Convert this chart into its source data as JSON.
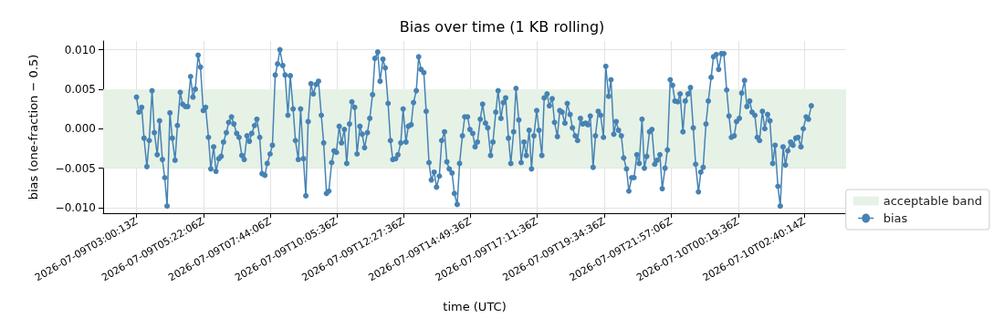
{
  "chart_data": {
    "type": "line",
    "title": "Bias over time (1 KB rolling)",
    "xlabel": "time (UTC)",
    "ylabel": "bias (one-fraction − 0.5)",
    "xlim": [
      "2026-07-09T01:49",
      "2026-07-10T04:09"
    ],
    "xticks": [
      {
        "value": "2026-07-09T03:00:13",
        "label": "2026-07-09T03:00:13Z"
      },
      {
        "value": "2026-07-09T05:22:06",
        "label": "2026-07-09T05:22:06Z"
      },
      {
        "value": "2026-07-09T07:44:06",
        "label": "2026-07-09T07:44:06Z"
      },
      {
        "value": "2026-07-09T10:05:36",
        "label": "2026-07-09T10:05:36Z"
      },
      {
        "value": "2026-07-09T12:27:36",
        "label": "2026-07-09T12:27:36Z"
      },
      {
        "value": "2026-07-09T14:49:36",
        "label": "2026-07-09T14:49:36Z"
      },
      {
        "value": "2026-07-09T17:11:36",
        "label": "2026-07-09T17:11:36Z"
      },
      {
        "value": "2026-07-09T19:34:36",
        "label": "2026-07-09T19:34:36Z"
      },
      {
        "value": "2026-07-09T21:57:06",
        "label": "2026-07-09T21:57:06Z"
      },
      {
        "value": "2026-07-10T00:19:36",
        "label": "2026-07-10T00:19:36Z"
      },
      {
        "value": "2026-07-10T02:40:14",
        "label": "2026-07-10T02:40:14Z"
      }
    ],
    "ylim": [
      -0.0107,
      0.0111
    ],
    "yticks": [
      {
        "value": -0.01,
        "label": "−0.010"
      },
      {
        "value": -0.005,
        "label": "−0.005"
      },
      {
        "value": 0,
        "label": "0.000"
      },
      {
        "value": 0.005,
        "label": "0.005"
      },
      {
        "value": 0.01,
        "label": "0.010"
      }
    ],
    "grid": true,
    "legend": "bottom right",
    "marker": "circle",
    "line_style": "solid",
    "bands": [
      {
        "axis": "y",
        "from": -0.005,
        "to": 0.005,
        "label": "acceptable band",
        "color": "#e6f2e6"
      }
    ],
    "series": [
      {
        "name": "bias",
        "color": "#4682b4",
        "x": [
          "2026-07-09T03:00",
          "2026-07-09T03:05",
          "2026-07-09T03:11",
          "2026-07-09T03:16",
          "2026-07-09T03:22",
          "2026-07-09T03:27",
          "2026-07-09T03:33",
          "2026-07-09T03:38",
          "2026-07-09T03:44",
          "2026-07-09T03:49",
          "2026-07-09T03:55",
          "2026-07-09T04:00",
          "2026-07-09T04:05",
          "2026-07-09T04:11",
          "2026-07-09T04:16",
          "2026-07-09T04:22",
          "2026-07-09T04:27",
          "2026-07-09T04:33",
          "2026-07-09T04:38",
          "2026-07-09T04:44",
          "2026-07-09T04:49",
          "2026-07-09T04:55",
          "2026-07-09T05:00",
          "2026-07-09T05:05",
          "2026-07-09T05:11",
          "2026-07-09T05:16",
          "2026-07-09T05:22",
          "2026-07-09T05:27",
          "2026-07-09T05:33",
          "2026-07-09T05:38",
          "2026-07-09T05:44",
          "2026-07-09T05:49",
          "2026-07-09T05:55",
          "2026-07-09T06:00",
          "2026-07-09T06:05",
          "2026-07-09T06:11",
          "2026-07-09T06:16",
          "2026-07-09T06:22",
          "2026-07-09T06:27",
          "2026-07-09T06:33",
          "2026-07-09T06:38",
          "2026-07-09T06:44",
          "2026-07-09T06:49",
          "2026-07-09T06:55",
          "2026-07-09T07:00",
          "2026-07-09T07:05",
          "2026-07-09T07:11",
          "2026-07-09T07:16",
          "2026-07-09T07:22",
          "2026-07-09T07:27",
          "2026-07-09T07:33",
          "2026-07-09T07:38",
          "2026-07-09T07:44",
          "2026-07-09T07:49",
          "2026-07-09T07:55",
          "2026-07-09T08:00",
          "2026-07-09T08:05",
          "2026-07-09T08:11",
          "2026-07-09T08:16",
          "2026-07-09T08:22",
          "2026-07-09T08:27",
          "2026-07-09T08:33",
          "2026-07-09T08:38",
          "2026-07-09T08:44",
          "2026-07-09T08:49",
          "2026-07-09T08:55",
          "2026-07-09T09:00",
          "2026-07-09T09:05",
          "2026-07-09T09:11",
          "2026-07-09T09:16",
          "2026-07-09T09:22",
          "2026-07-09T09:27",
          "2026-07-09T09:33",
          "2026-07-09T09:38",
          "2026-07-09T09:44",
          "2026-07-09T09:49",
          "2026-07-09T09:55",
          "2026-07-09T10:00",
          "2026-07-09T10:05",
          "2026-07-09T10:11",
          "2026-07-09T10:16",
          "2026-07-09T10:22",
          "2026-07-09T10:27",
          "2026-07-09T10:33",
          "2026-07-09T10:38",
          "2026-07-09T10:44",
          "2026-07-09T10:49",
          "2026-07-09T10:55",
          "2026-07-09T11:00",
          "2026-07-09T11:05",
          "2026-07-09T11:11",
          "2026-07-09T11:16",
          "2026-07-09T11:22",
          "2026-07-09T11:27",
          "2026-07-09T11:33",
          "2026-07-09T11:38",
          "2026-07-09T11:44",
          "2026-07-09T11:49",
          "2026-07-09T11:55",
          "2026-07-09T12:00",
          "2026-07-09T12:05",
          "2026-07-09T12:11",
          "2026-07-09T12:16",
          "2026-07-09T12:22",
          "2026-07-09T12:27",
          "2026-07-09T12:33",
          "2026-07-09T12:38",
          "2026-07-09T12:44",
          "2026-07-09T12:49",
          "2026-07-09T12:55",
          "2026-07-09T13:00",
          "2026-07-09T13:05",
          "2026-07-09T13:11",
          "2026-07-09T13:16",
          "2026-07-09T13:22",
          "2026-07-09T13:27",
          "2026-07-09T13:33",
          "2026-07-09T13:38",
          "2026-07-09T13:44",
          "2026-07-09T13:49",
          "2026-07-09T13:55",
          "2026-07-09T14:00",
          "2026-07-09T14:05",
          "2026-07-09T14:11",
          "2026-07-09T14:16",
          "2026-07-09T14:22",
          "2026-07-09T14:27",
          "2026-07-09T14:33",
          "2026-07-09T14:38",
          "2026-07-09T14:44",
          "2026-07-09T14:49",
          "2026-07-09T14:55",
          "2026-07-09T15:00",
          "2026-07-09T15:05",
          "2026-07-09T15:11",
          "2026-07-09T15:16",
          "2026-07-09T15:22",
          "2026-07-09T15:27",
          "2026-07-09T15:33",
          "2026-07-09T15:38",
          "2026-07-09T15:44",
          "2026-07-09T15:49",
          "2026-07-09T15:55",
          "2026-07-09T16:00",
          "2026-07-09T16:05",
          "2026-07-09T16:11",
          "2026-07-09T16:16",
          "2026-07-09T16:22",
          "2026-07-09T16:27",
          "2026-07-09T16:33",
          "2026-07-09T16:38",
          "2026-07-09T16:44",
          "2026-07-09T16:49",
          "2026-07-09T16:55",
          "2026-07-09T17:00",
          "2026-07-09T17:05",
          "2026-07-09T17:11",
          "2026-07-09T17:16",
          "2026-07-09T17:22",
          "2026-07-09T17:27",
          "2026-07-09T17:33",
          "2026-07-09T17:38",
          "2026-07-09T17:44",
          "2026-07-09T17:49",
          "2026-07-09T17:55",
          "2026-07-09T18:00",
          "2026-07-09T18:05",
          "2026-07-09T18:11",
          "2026-07-09T18:16",
          "2026-07-09T18:22",
          "2026-07-09T18:27",
          "2026-07-09T18:33",
          "2026-07-09T18:38",
          "2026-07-09T18:44",
          "2026-07-09T18:49",
          "2026-07-09T18:55",
          "2026-07-09T19:00",
          "2026-07-09T19:05",
          "2026-07-09T19:11",
          "2026-07-09T19:16",
          "2026-07-09T19:22",
          "2026-07-09T19:27",
          "2026-07-09T19:33",
          "2026-07-09T19:38",
          "2026-07-09T19:44",
          "2026-07-09T19:49",
          "2026-07-09T19:55",
          "2026-07-09T20:00",
          "2026-07-09T20:05",
          "2026-07-09T20:11",
          "2026-07-09T20:16",
          "2026-07-09T20:22",
          "2026-07-09T20:27",
          "2026-07-09T20:33",
          "2026-07-09T20:38",
          "2026-07-09T20:44",
          "2026-07-09T20:49",
          "2026-07-09T20:55",
          "2026-07-09T21:00",
          "2026-07-09T21:05",
          "2026-07-09T21:11",
          "2026-07-09T21:16",
          "2026-07-09T21:22",
          "2026-07-09T21:27",
          "2026-07-09T21:33",
          "2026-07-09T21:38",
          "2026-07-09T21:44",
          "2026-07-09T21:49",
          "2026-07-09T21:55",
          "2026-07-09T22:00",
          "2026-07-09T22:05",
          "2026-07-09T22:11",
          "2026-07-09T22:16",
          "2026-07-09T22:22",
          "2026-07-09T22:27",
          "2026-07-09T22:33",
          "2026-07-09T22:38",
          "2026-07-09T22:44",
          "2026-07-09T22:49",
          "2026-07-09T22:55",
          "2026-07-09T23:00",
          "2026-07-09T23:05",
          "2026-07-09T23:11",
          "2026-07-09T23:16",
          "2026-07-09T23:22",
          "2026-07-09T23:27",
          "2026-07-09T23:33",
          "2026-07-09T23:38",
          "2026-07-09T23:44",
          "2026-07-09T23:49",
          "2026-07-09T23:55",
          "2026-07-10T00:00",
          "2026-07-10T00:05",
          "2026-07-10T00:11",
          "2026-07-10T00:16",
          "2026-07-10T00:22",
          "2026-07-10T00:27",
          "2026-07-10T00:33",
          "2026-07-10T00:38",
          "2026-07-10T00:44",
          "2026-07-10T00:49",
          "2026-07-10T00:55",
          "2026-07-10T01:00",
          "2026-07-10T01:05",
          "2026-07-10T01:11",
          "2026-07-10T01:16",
          "2026-07-10T01:22",
          "2026-07-10T01:27",
          "2026-07-10T01:33",
          "2026-07-10T01:38",
          "2026-07-10T01:44",
          "2026-07-10T01:49",
          "2026-07-10T01:55",
          "2026-07-10T02:00",
          "2026-07-10T02:05",
          "2026-07-10T02:11",
          "2026-07-10T02:16",
          "2026-07-10T02:22",
          "2026-07-10T02:27",
          "2026-07-10T02:33",
          "2026-07-10T02:38",
          "2026-07-10T02:44",
          "2026-07-10T02:49",
          "2026-07-10T02:55"
        ],
        "values": [
          0.004,
          0.0021,
          0.0027,
          -0.0012,
          -0.0048,
          -0.0015,
          0.0048,
          -0.0005,
          -0.0033,
          0.001,
          -0.0039,
          -0.0062,
          -0.0098,
          0.002,
          -0.0012,
          -0.004,
          0.0004,
          0.0046,
          0.0031,
          0.0028,
          0.0028,
          0.0066,
          0.004,
          0.005,
          0.0093,
          0.0078,
          0.0023,
          0.0027,
          -0.0011,
          -0.0051,
          -0.0023,
          -0.0054,
          -0.0038,
          -0.0035,
          -0.0017,
          -0.0005,
          0.0008,
          0.0015,
          0.0006,
          -0.0006,
          -0.0011,
          -0.0034,
          -0.0039,
          -0.0009,
          -0.0016,
          -0.0006,
          0.0004,
          0.0012,
          -0.0011,
          -0.0057,
          -0.0059,
          -0.0044,
          -0.0032,
          -0.0021,
          0.0068,
          0.0082,
          0.01,
          0.008,
          0.0068,
          0.0017,
          0.0067,
          0.0025,
          -0.0015,
          -0.0039,
          0.0025,
          -0.0038,
          -0.0085,
          0.0009,
          0.0057,
          0.0044,
          0.0056,
          0.006,
          0.0017,
          -0.0018,
          -0.0082,
          -0.0079,
          -0.0043,
          -0.0028,
          -0.003,
          0.0003,
          -0.0018,
          -0.0001,
          -0.0044,
          0.0006,
          0.0034,
          0.0027,
          -0.0032,
          0.0003,
          -0.0007,
          -0.0024,
          -0.0005,
          0.0013,
          0.0043,
          0.0089,
          0.0097,
          0.006,
          0.0088,
          0.0077,
          0.0032,
          -0.0015,
          -0.0039,
          -0.0038,
          -0.0033,
          -0.0018,
          0.0025,
          -0.0017,
          0.0003,
          0.0005,
          0.0033,
          0.0048,
          0.0091,
          0.0075,
          0.0071,
          0.0022,
          -0.0043,
          -0.0065,
          -0.0055,
          -0.0074,
          -0.006,
          -0.0015,
          -0.0004,
          -0.0042,
          -0.0051,
          -0.0056,
          -0.0082,
          -0.0096,
          -0.0044,
          -0.0009,
          0.0015,
          0.0015,
          -0.0001,
          -0.0006,
          -0.0023,
          -0.0017,
          0.0012,
          0.0031,
          0.0007,
          0.0001,
          -0.0034,
          -0.0017,
          0.0021,
          0.0048,
          0.0013,
          0.0033,
          0.0039,
          -0.0012,
          -0.0044,
          -0.0004,
          0.0051,
          0.0011,
          -0.0043,
          -0.0017,
          -0.0034,
          -0.0002,
          -0.0051,
          -0.0009,
          0.0023,
          -0.0002,
          -0.0034,
          0.0039,
          0.0044,
          0.0029,
          0.0038,
          0.0008,
          -0.001,
          0.0023,
          0.0021,
          0.0007,
          0.0032,
          0.0018,
          0.0001,
          -0.0009,
          -0.0015,
          0.0013,
          0.0006,
          0.0007,
          0.0005,
          0.0016,
          -0.0049,
          -0.0009,
          0.0022,
          0.0017,
          -0.0011,
          0.0079,
          0.0041,
          0.0062,
          -0.0007,
          0.0009,
          -0.0002,
          -0.0009,
          -0.0037,
          -0.0051,
          -0.0079,
          -0.0062,
          -0.0062,
          -0.0033,
          -0.0044,
          0.0012,
          -0.005,
          -0.0035,
          -0.0004,
          -0.0001,
          -0.0045,
          -0.004,
          -0.0033,
          -0.0076,
          -0.005,
          -0.0027,
          0.0062,
          0.0055,
          0.0035,
          0.0034,
          0.0044,
          -0.0004,
          0.0035,
          0.0044,
          0.0052,
          0.0001,
          -0.0045,
          -0.008,
          -0.0055,
          -0.0049,
          0.0006,
          0.0035,
          0.0065,
          0.0091,
          0.0094,
          0.0075,
          0.0095,
          0.0095,
          0.0049,
          0.0016,
          -0.0011,
          -0.0009,
          0.0009,
          0.0013,
          0.0045,
          0.0061,
          0.0028,
          0.0035,
          0.0021,
          0.0017,
          -0.0011,
          -0.0015,
          0.0022,
          0,
          0.0018,
          0.001,
          -0.0044,
          -0.0021,
          -0.0073,
          -0.0098,
          -0.0023,
          -0.0046,
          -0.0028,
          -0.0017,
          -0.0021,
          -0.0012,
          -0.0011,
          -0.0023,
          0,
          0.0015,
          0.0012,
          0.0029
        ]
      }
    ]
  }
}
